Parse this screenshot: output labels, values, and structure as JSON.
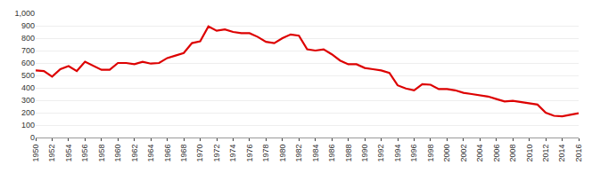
{
  "chart_data": {
    "type": "line",
    "x": [
      1950,
      1951,
      1952,
      1953,
      1954,
      1955,
      1956,
      1957,
      1958,
      1959,
      1960,
      1961,
      1962,
      1963,
      1964,
      1965,
      1966,
      1967,
      1968,
      1969,
      1970,
      1971,
      1972,
      1973,
      1974,
      1975,
      1976,
      1977,
      1978,
      1979,
      1980,
      1981,
      1982,
      1983,
      1984,
      1985,
      1986,
      1987,
      1988,
      1989,
      1990,
      1991,
      1992,
      1993,
      1994,
      1995,
      1996,
      1997,
      1998,
      1999,
      2000,
      2001,
      2002,
      2003,
      2004,
      2005,
      2006,
      2007,
      2008,
      2009,
      2010,
      2011,
      2012,
      2013,
      2014,
      2015,
      2016
    ],
    "values": [
      540,
      535,
      490,
      550,
      575,
      535,
      610,
      580,
      545,
      545,
      600,
      600,
      590,
      610,
      595,
      600,
      640,
      660,
      680,
      760,
      775,
      895,
      860,
      870,
      850,
      840,
      840,
      810,
      770,
      760,
      800,
      830,
      820,
      710,
      700,
      710,
      670,
      620,
      590,
      590,
      560,
      550,
      540,
      520,
      420,
      395,
      380,
      430,
      425,
      390,
      390,
      380,
      360,
      350,
      340,
      330,
      310,
      290,
      295,
      285,
      270,
      265,
      200,
      175,
      170,
      180,
      195
    ],
    "color": "#dd0000",
    "xlim": [
      1950,
      2016
    ],
    "xticks": [
      1950,
      1952,
      1954,
      1956,
      1958,
      1960,
      1962,
      1964,
      1966,
      1968,
      1970,
      1972,
      1974,
      1976,
      1978,
      1980,
      1982,
      1984,
      1986,
      1988,
      1990,
      1992,
      1994,
      1996,
      1998,
      2000,
      2002,
      2004,
      2006,
      2008,
      2010,
      2012,
      2014,
      2016
    ],
    "ylim": [
      0,
      1000
    ],
    "yticks": [
      0,
      100,
      200,
      300,
      400,
      500,
      600,
      700,
      800,
      900,
      {
        "value": 1000,
        "label": "1,000"
      }
    ],
    "grid": true
  }
}
